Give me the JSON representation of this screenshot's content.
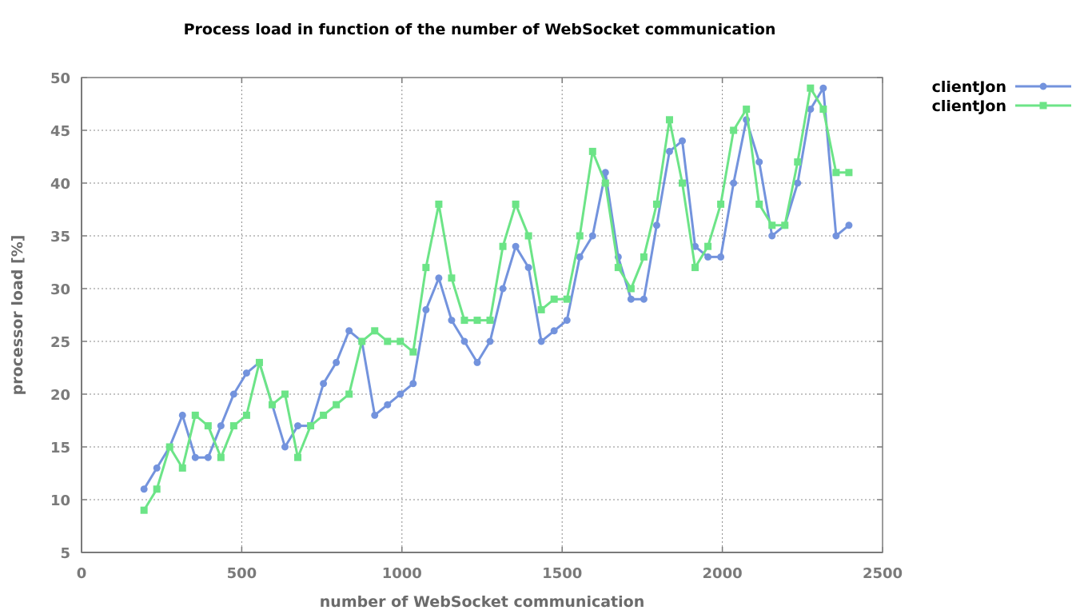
{
  "chart_data": {
    "type": "line",
    "title": "Process load in function of the number of WebSocket communication",
    "xlabel": "number of WebSocket communication",
    "ylabel": "processor load [%]",
    "xlim": [
      0,
      2500
    ],
    "ylim": [
      5,
      50
    ],
    "xticks": [
      0,
      500,
      1000,
      1500,
      2000,
      2500
    ],
    "yticks": [
      5,
      10,
      15,
      20,
      25,
      30,
      35,
      40,
      45,
      50
    ],
    "grid": true,
    "legend_position": "top-right outside",
    "x": [
      195,
      235,
      275,
      315,
      355,
      395,
      435,
      475,
      515,
      555,
      595,
      635,
      675,
      715,
      755,
      795,
      835,
      875,
      915,
      955,
      995,
      1035,
      1075,
      1115,
      1155,
      1195,
      1235,
      1275,
      1315,
      1355,
      1395,
      1435,
      1475,
      1515,
      1555,
      1595,
      1635,
      1675,
      1715,
      1755,
      1795,
      1835,
      1875,
      1915,
      1955,
      1995,
      2035,
      2075,
      2115,
      2155,
      2195,
      2235,
      2275,
      2315,
      2355,
      2395
    ],
    "series": [
      {
        "name": "clientJon",
        "color": "#7393dd",
        "marker": "circle",
        "values": [
          11,
          13,
          15,
          18,
          14,
          14,
          17,
          20,
          22,
          23,
          19,
          15,
          17,
          17,
          21,
          23,
          26,
          25,
          18,
          19,
          20,
          21,
          28,
          31,
          27,
          25,
          23,
          25,
          30,
          34,
          32,
          25,
          26,
          27,
          33,
          35,
          41,
          33,
          29,
          29,
          36,
          43,
          44,
          34,
          33,
          33,
          40,
          46,
          42,
          35,
          36,
          40,
          47,
          49,
          35,
          36
        ]
      },
      {
        "name": "clientJon",
        "color": "#6ce487",
        "marker": "square",
        "values": [
          9,
          11,
          15,
          13,
          18,
          17,
          14,
          17,
          18,
          23,
          19,
          20,
          14,
          17,
          18,
          19,
          20,
          25,
          26,
          25,
          25,
          24,
          32,
          38,
          31,
          27,
          27,
          27,
          34,
          38,
          35,
          28,
          29,
          29,
          35,
          43,
          40,
          32,
          30,
          33,
          38,
          46,
          40,
          32,
          34,
          38,
          45,
          47,
          38,
          36,
          36,
          42,
          49,
          47,
          41,
          41
        ]
      }
    ]
  }
}
